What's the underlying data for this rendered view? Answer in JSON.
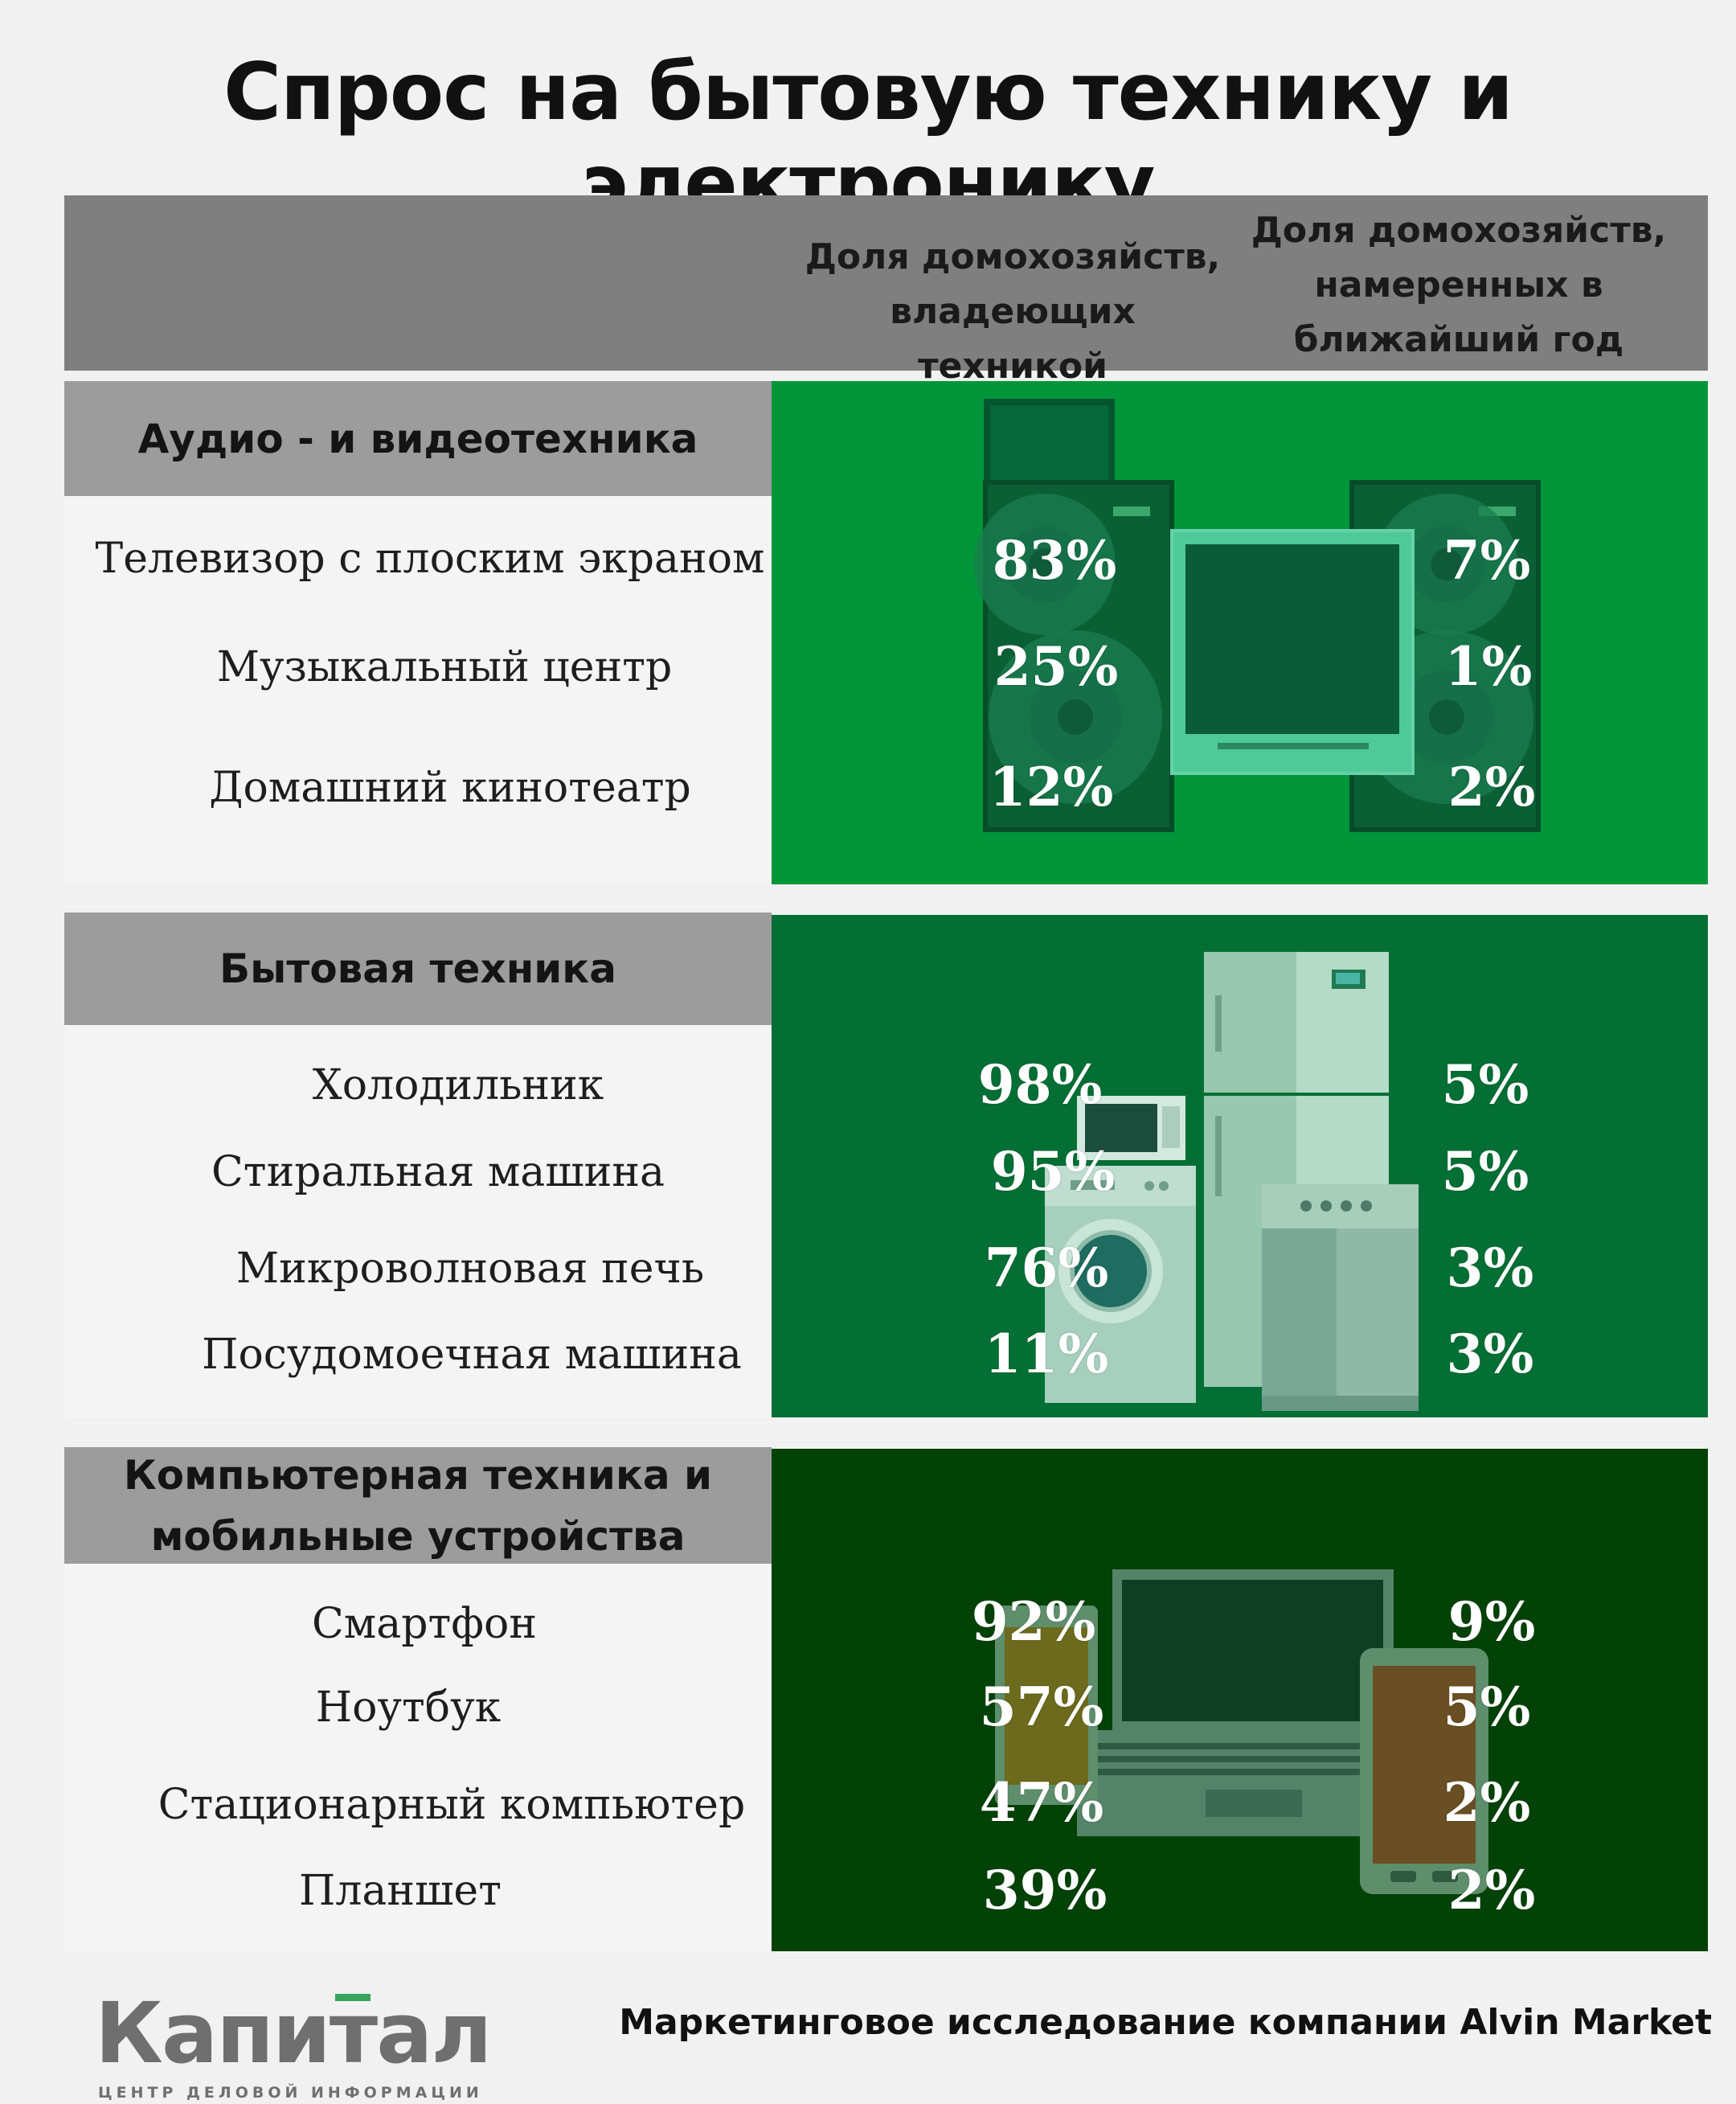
{
  "title": "Спрос на бытовую технику и электронику",
  "columns": {
    "own": "Доля домохозяйств, владеющих техникой",
    "buy": "Доля домохозяйств, намеренных в ближайший год купить технику"
  },
  "colors": {
    "audio_panel": "#02953a",
    "appliance_panel": "#046f34",
    "computer_panel": "#024207",
    "category_bar": "#9c9c9c",
    "header_band": "#7f7f7f",
    "logo_accent": "#37a55a"
  },
  "chart_data": [
    {
      "type": "table",
      "category": "Аудио - и видеотехника",
      "items": [
        "Телевизор с плоским экраном",
        "Музыкальный центр",
        "Домашний кинотеатр"
      ],
      "series": [
        {
          "name": "Доля домохозяйств, владеющих техникой",
          "values": [
            "83%",
            "25%",
            "12%"
          ]
        },
        {
          "name": "Доля домохозяйств, намеренных в ближайший год купить технику",
          "values": [
            "7%",
            "1%",
            "2%"
          ]
        }
      ]
    },
    {
      "type": "table",
      "category": "Бытовая техника",
      "items": [
        "Холодильник",
        "Стиральная машина",
        "Микроволновая печь",
        "Посудомоечная машина"
      ],
      "series": [
        {
          "name": "Доля домохозяйств, владеющих техникой",
          "values": [
            "98%",
            "95%",
            "76%",
            "11%"
          ]
        },
        {
          "name": "Доля домохозяйств, намеренных в ближайший год купить технику",
          "values": [
            "5%",
            "5%",
            "3%",
            "3%"
          ]
        }
      ]
    },
    {
      "type": "table",
      "category": "Компьютерная техника и мобильные устройства",
      "items": [
        "Смартфон",
        "Ноутбук",
        "Стационарный компьютер",
        "Планшет"
      ],
      "series": [
        {
          "name": "Доля домохозяйств, владеющих техникой",
          "values": [
            "92%",
            "57%",
            "47%",
            "39%"
          ]
        },
        {
          "name": "Доля домохозяйств, намеренных в ближайший год купить технику",
          "values": [
            "9%",
            "5%",
            "2%",
            "2%"
          ]
        }
      ]
    }
  ],
  "footer": {
    "logo": "Капитал",
    "logo_sub": "ЦЕНТР ДЕЛОВОЙ ИНФОРМАЦИИ",
    "source": "Маркетинговое исследование компании Alvin Market"
  },
  "icons": [
    "tv-speakers-icon",
    "home-appliances-icon",
    "computer-devices-icon"
  ]
}
